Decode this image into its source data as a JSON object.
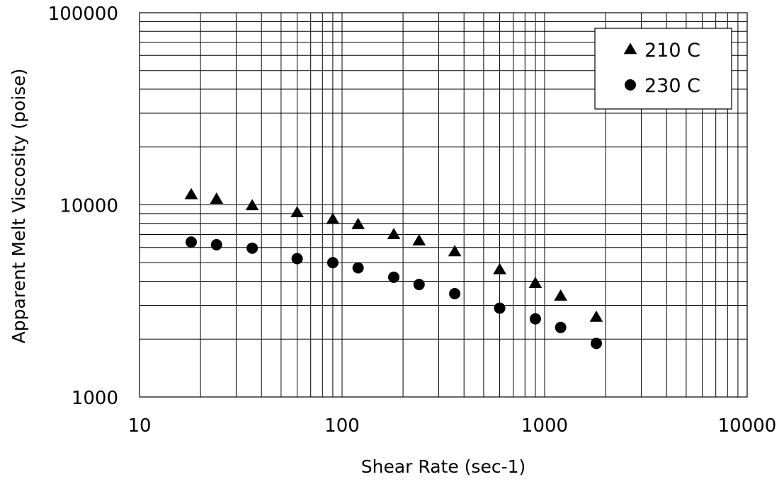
{
  "chart_data": {
    "type": "scatter",
    "title": "",
    "xlabel": "Shear Rate (sec-1)",
    "ylabel": "Apparent Melt Viscosity (poise)",
    "xscale": "log",
    "yscale": "log",
    "xlim": [
      10,
      10000
    ],
    "ylim": [
      1000,
      100000
    ],
    "x_tick_labels": [
      "10",
      "100",
      "1000",
      "10000"
    ],
    "y_tick_labels": [
      "1000",
      "10000",
      "100000"
    ],
    "grid": true,
    "legend_position": "top-right",
    "series": [
      {
        "name": "210 C",
        "marker": "triangle",
        "color": "#000000",
        "x": [
          18,
          24,
          36,
          60,
          90,
          120,
          180,
          240,
          360,
          600,
          900,
          1200,
          1800
        ],
        "y": [
          11300,
          10700,
          9900,
          9100,
          8400,
          7900,
          7000,
          6500,
          5700,
          4600,
          3900,
          3350,
          2600
        ]
      },
      {
        "name": "230 C",
        "marker": "circle",
        "color": "#000000",
        "x": [
          18,
          24,
          36,
          60,
          90,
          120,
          180,
          240,
          360,
          600,
          900,
          1200,
          1800
        ],
        "y": [
          6400,
          6200,
          5950,
          5250,
          5000,
          4700,
          4200,
          3850,
          3450,
          2900,
          2550,
          2300,
          1900
        ]
      }
    ]
  }
}
